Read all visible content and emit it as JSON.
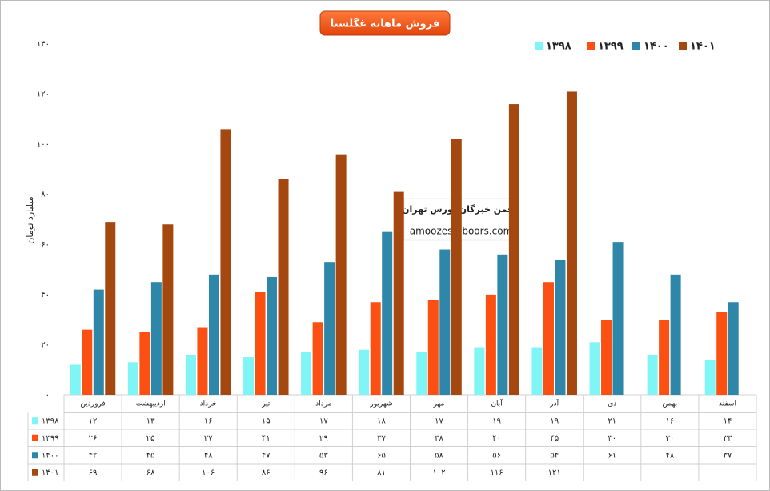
{
  "chart_data": {
    "type": "bar",
    "title": "فروش ماهانه غگلستا",
    "y_label": "میلیارد تومان",
    "annotations": [
      "انجمن خبرگان بورس تهران",
      "amoozesh-boors.com"
    ],
    "categories": [
      "فروردین",
      "اردیبهشت",
      "خرداد",
      "تیر",
      "مرداد",
      "شهریور",
      "مهر",
      "آبان",
      "آذر",
      "دی",
      "بهمن",
      "اسفند"
    ],
    "series": [
      {
        "name": "۱۳۹۸",
        "color": "#7ff5f5",
        "values": [
          12,
          13,
          16,
          15,
          17,
          18,
          17,
          19,
          19,
          21,
          16,
          14
        ],
        "value_labels": [
          "۱۲",
          "۱۳",
          "۱۶",
          "۱۵",
          "۱۷",
          "۱۸",
          "۱۷",
          "۱۹",
          "۱۹",
          "۲۱",
          "۱۶",
          "۱۴"
        ]
      },
      {
        "name": "۱۳۹۹",
        "color": "#fc4f12",
        "values": [
          26,
          25,
          27,
          41,
          29,
          37,
          38,
          40,
          45,
          30,
          30,
          33
        ],
        "value_labels": [
          "۲۶",
          "۲۵",
          "۲۷",
          "۴۱",
          "۲۹",
          "۳۷",
          "۳۸",
          "۴۰",
          "۴۵",
          "۳۰",
          "۳۰",
          "۳۳"
        ]
      },
      {
        "name": "۱۴۰۰",
        "color": "#2e86a8",
        "values": [
          42,
          45,
          48,
          47,
          53,
          65,
          58,
          56,
          54,
          61,
          48,
          37
        ],
        "value_labels": [
          "۴۲",
          "۴۵",
          "۴۸",
          "۴۷",
          "۵۳",
          "۶۵",
          "۵۸",
          "۵۶",
          "۵۴",
          "۶۱",
          "۴۸",
          "۳۷"
        ]
      },
      {
        "name": "۱۴۰۱",
        "color": "#a5480f",
        "values": [
          69,
          68,
          106,
          86,
          96,
          81,
          102,
          116,
          121,
          null,
          null,
          null
        ],
        "value_labels": [
          "۶۹",
          "۶۸",
          "۱۰۶",
          "۸۶",
          "۹۶",
          "۸۱",
          "۱۰۲",
          "۱۱۶",
          "۱۲۱",
          null,
          null,
          null
        ]
      }
    ],
    "ylim": [
      0,
      140
    ],
    "yticks": [
      {
        "value": 0,
        "label": "۰"
      },
      {
        "value": 20,
        "label": "۲۰"
      },
      {
        "value": 40,
        "label": "۴۰"
      },
      {
        "value": 60,
        "label": "۶۰"
      },
      {
        "value": 80,
        "label": "۸۰"
      },
      {
        "value": 100,
        "label": "۱۰۰"
      },
      {
        "value": 120,
        "label": "۱۲۰"
      },
      {
        "value": 140,
        "label": "۱۴۰"
      }
    ],
    "legend": "top-right"
  }
}
